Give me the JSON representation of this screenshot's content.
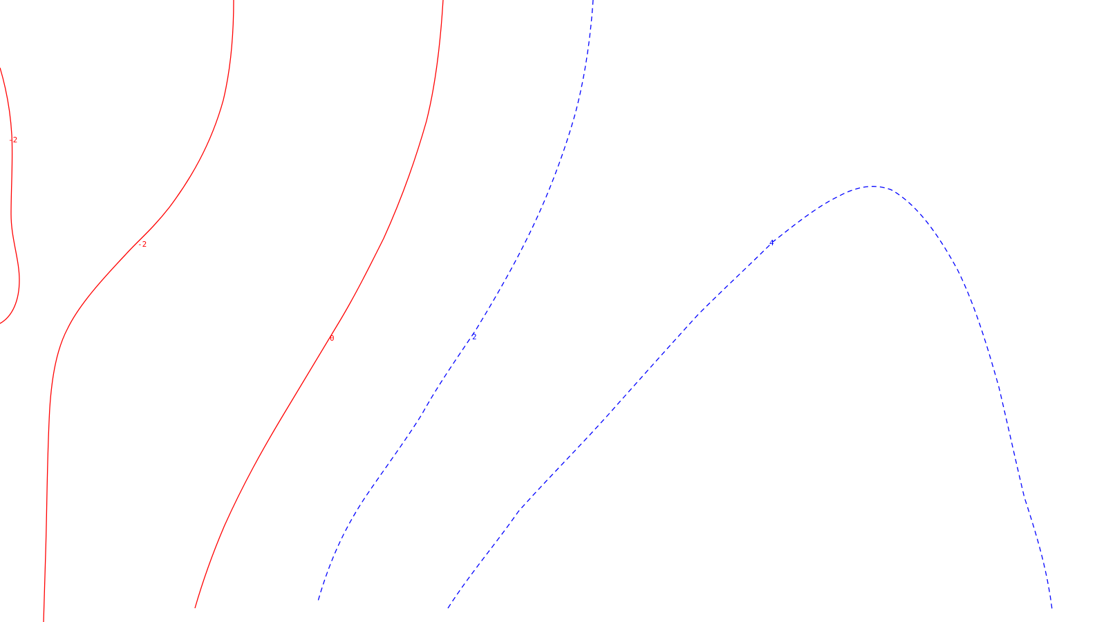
{
  "chart_data": {
    "type": "contour",
    "title": "",
    "xlabel": "",
    "ylabel": "",
    "grid": false,
    "legend": "none",
    "colors": {
      "negative": "#ff0000",
      "positive": "#0000ff",
      "background": "#ffffff"
    },
    "levels": [
      {
        "id": "neg2-left",
        "value": -2,
        "label": "-2",
        "color": "#ff0000",
        "style": "solid"
      },
      {
        "id": "neg2-mid",
        "value": -2,
        "label": "-2",
        "color": "#ff0000",
        "style": "solid"
      },
      {
        "id": "zero",
        "value": 0,
        "label": "0",
        "color": "#ff0000",
        "style": "solid"
      },
      {
        "id": "pos2",
        "value": 2,
        "label": "2",
        "color": "#0000ff",
        "style": "dashed"
      },
      {
        "id": "pos4",
        "value": 4,
        "label": "4",
        "color": "#0000ff",
        "style": "dashed"
      }
    ]
  }
}
